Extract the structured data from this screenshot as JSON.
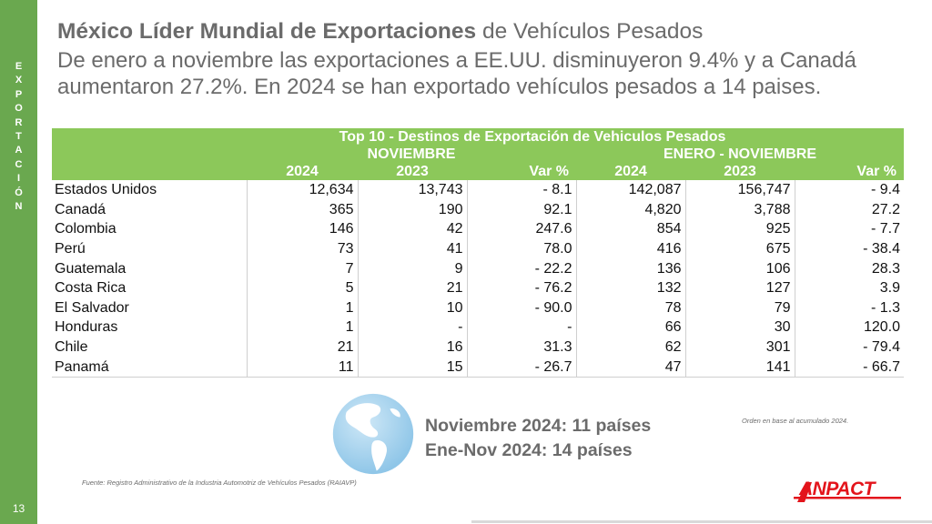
{
  "sidebar": {
    "vertical_label_letters": [
      "E",
      "X",
      "P",
      "O",
      "R",
      "T",
      "A",
      "C",
      "I",
      "Ó",
      "N"
    ],
    "page_number": "13",
    "color": "#6aa84f"
  },
  "header": {
    "title_bold": "México Líder Mundial de Exportaciones",
    "title_rest": " de Vehículos Pesados",
    "subtitle": "De enero a noviembre las exportaciones a EE.UU. disminuyeron 9.4% y a Canadá aumentaron 27.2%. En 2024 se han exportado vehículos pesados a 14 paises."
  },
  "table": {
    "title": "Top 10 - Destinos de Exportación de Vehiculos Pesados",
    "group_month": "NOVIEMBRE",
    "group_ytd": "ENERO - NOVIEMBRE",
    "col_2024": "2024",
    "col_2023": "2023",
    "col_var": "Var %",
    "header_color": "#8cc85a",
    "rows": [
      {
        "country": "Estados Unidos",
        "nov_2024": "12,634",
        "nov_2023": "13,743",
        "nov_var": "- 8.1",
        "ytd_2024": "142,087",
        "ytd_2023": "156,747",
        "ytd_var": "- 9.4"
      },
      {
        "country": "Canadá",
        "nov_2024": "365",
        "nov_2023": "190",
        "nov_var": "92.1",
        "ytd_2024": "4,820",
        "ytd_2023": "3,788",
        "ytd_var": "27.2"
      },
      {
        "country": "Colombia",
        "nov_2024": "146",
        "nov_2023": "42",
        "nov_var": "247.6",
        "ytd_2024": "854",
        "ytd_2023": "925",
        "ytd_var": "- 7.7"
      },
      {
        "country": "Perú",
        "nov_2024": "73",
        "nov_2023": "41",
        "nov_var": "78.0",
        "ytd_2024": "416",
        "ytd_2023": "675",
        "ytd_var": "- 38.4"
      },
      {
        "country": "Guatemala",
        "nov_2024": "7",
        "nov_2023": "9",
        "nov_var": "- 22.2",
        "ytd_2024": "136",
        "ytd_2023": "106",
        "ytd_var": "28.3"
      },
      {
        "country": "Costa Rica",
        "nov_2024": "5",
        "nov_2023": "21",
        "nov_var": "- 76.2",
        "ytd_2024": "132",
        "ytd_2023": "127",
        "ytd_var": "3.9"
      },
      {
        "country": "El Salvador",
        "nov_2024": "1",
        "nov_2023": "10",
        "nov_var": "- 90.0",
        "ytd_2024": "78",
        "ytd_2023": "79",
        "ytd_var": "- 1.3"
      },
      {
        "country": "Honduras",
        "nov_2024": "1",
        "nov_2023": "-",
        "nov_var": "-",
        "ytd_2024": "66",
        "ytd_2023": "30",
        "ytd_var": "120.0"
      },
      {
        "country": "Chile",
        "nov_2024": "21",
        "nov_2023": "16",
        "nov_var": "31.3",
        "ytd_2024": "62",
        "ytd_2023": "301",
        "ytd_var": "- 79.4"
      },
      {
        "country": "Panamá",
        "nov_2024": "11",
        "nov_2023": "15",
        "nov_var": "- 26.7",
        "ytd_2024": "47",
        "ytd_2023": "141",
        "ytd_var": "- 66.7"
      }
    ]
  },
  "summary": {
    "line1": "Noviembre 2024: 11 países",
    "line2": "Ene-Nov 2024: 14 países",
    "globe_icon": "globe-americas-icon"
  },
  "note": "Orden en base al acumulado 2024.",
  "source": "Fuente: Registro Administrativo de la Industria Automotriz de Vehículos Pesados (RAIAVP)",
  "logo": {
    "text": "ANPACT",
    "color": "#e3141b"
  }
}
